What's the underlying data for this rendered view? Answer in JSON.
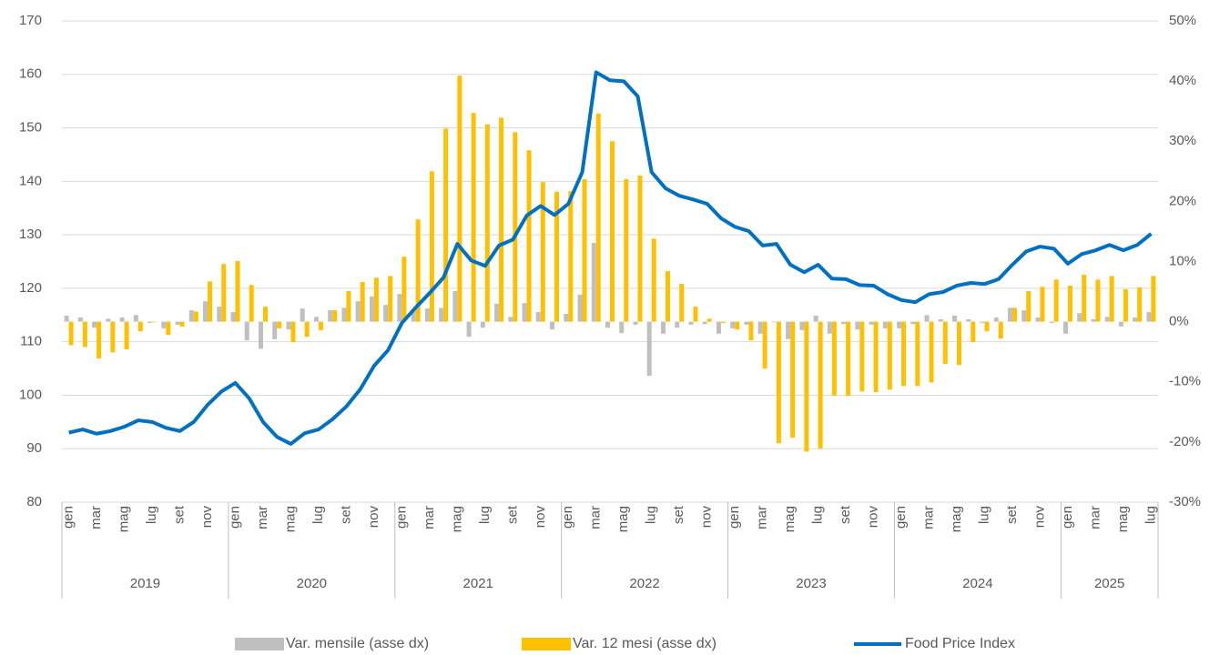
{
  "chart_data": {
    "type": "combo",
    "categories": [
      "gen",
      null,
      "mar",
      null,
      "mag",
      null,
      "lug",
      null,
      "set",
      null,
      "nov",
      null,
      "gen",
      null,
      "mar",
      null,
      "mag",
      null,
      "lug",
      null,
      "set",
      null,
      "nov",
      null,
      "gen",
      null,
      "mar",
      null,
      "mag",
      null,
      "lug",
      null,
      "set",
      null,
      "nov",
      null,
      "gen",
      null,
      "mar",
      null,
      "mag",
      null,
      "lug",
      null,
      "set",
      null,
      "nov",
      null,
      "gen",
      null,
      "mar",
      null,
      "mag",
      null,
      "lug",
      null,
      "set",
      null,
      "nov",
      null,
      "gen",
      null,
      "mar",
      null,
      "mag",
      null,
      "lug",
      null,
      "set",
      null,
      "nov",
      null,
      "gen",
      null,
      "mar",
      null,
      "mag",
      null,
      "lug"
    ],
    "year_groups": [
      "2019",
      "2020",
      "2021",
      "2022",
      "2023",
      "2024",
      "2025"
    ],
    "series": [
      {
        "name": "Var. mensile (asse dx)",
        "type": "bar",
        "axis": "y2",
        "color": "#bfbfbf",
        "values": [
          1.0,
          0.7,
          -1.0,
          0.5,
          0.7,
          1.1,
          -0.2,
          -1.1,
          -0.5,
          1.9,
          3.4,
          2.5,
          1.6,
          -3.1,
          -4.5,
          -2.9,
          -1.3,
          2.2,
          0.8,
          1.9,
          2.3,
          3.4,
          4.2,
          2.8,
          4.6,
          2.0,
          2.2,
          2.3,
          5.1,
          -2.5,
          -1.0,
          3.0,
          0.8,
          3.1,
          1.6,
          -1.3,
          1.3,
          4.5,
          13.1,
          -1.0,
          -1.9,
          -0.5,
          -9.0,
          -2.0,
          -1.0,
          -0.5,
          -0.4,
          -2.0,
          -1.1,
          -0.5,
          -2.0,
          0.1,
          -2.9,
          -1.4,
          1.0,
          -2.0,
          -0.4,
          -1.3,
          -0.5,
          -1.1,
          -1.1,
          -0.4,
          1.1,
          0.4,
          1.0,
          0.4,
          -0.2,
          0.7,
          2.3,
          1.9,
          0.7,
          -0.2,
          -2.0,
          1.4,
          0.4,
          0.8,
          -0.8,
          0.7,
          1.6
        ]
      },
      {
        "name": "Var. 12 mesi (asse dx)",
        "type": "bar",
        "axis": "y2",
        "color": "#ffc000",
        "values": [
          -3.9,
          -4.2,
          -6.1,
          -5.1,
          -4.6,
          -1.6,
          -0.1,
          -2.2,
          -0.8,
          1.7,
          6.7,
          9.6,
          10.1,
          6.1,
          2.5,
          -1.1,
          -3.4,
          -2.5,
          -1.4,
          1.9,
          5.1,
          6.6,
          7.3,
          7.6,
          10.8,
          17.0,
          25.0,
          32.1,
          40.9,
          34.7,
          32.8,
          33.9,
          31.5,
          28.5,
          23.2,
          21.6,
          21.7,
          23.7,
          34.6,
          30.0,
          23.7,
          24.3,
          13.8,
          8.4,
          6.3,
          2.5,
          0.5,
          -0.2,
          -1.3,
          -3.1,
          -7.8,
          -20.2,
          -19.3,
          -21.6,
          -21.1,
          -12.3,
          -12.3,
          -11.6,
          -11.7,
          -11.3,
          -10.7,
          -10.7,
          -10.1,
          -7.0,
          -7.2,
          -3.4,
          -1.6,
          -2.8,
          2.3,
          5.1,
          5.8,
          7.0,
          6.0,
          7.8,
          7.0,
          7.6,
          5.4,
          5.7,
          7.6
        ]
      },
      {
        "name": "Food Price Index",
        "type": "line",
        "axis": "y",
        "color": "#0070c0",
        "values": [
          93.0,
          93.6,
          92.8,
          93.3,
          94.1,
          95.3,
          95.0,
          93.9,
          93.3,
          95.0,
          98.2,
          100.7,
          102.3,
          99.4,
          95.0,
          92.2,
          90.9,
          92.9,
          93.6,
          95.5,
          97.9,
          101.1,
          105.5,
          108.4,
          113.5,
          116.4,
          119.1,
          122.0,
          128.3,
          125.2,
          124.2,
          128.0,
          129.1,
          133.6,
          135.4,
          133.7,
          135.8,
          141.7,
          160.4,
          158.9,
          158.7,
          155.9,
          141.7,
          138.7,
          137.3,
          136.6,
          135.8,
          133.1,
          131.5,
          130.7,
          128.0,
          128.3,
          124.4,
          123.0,
          124.4,
          121.8,
          121.7,
          120.6,
          120.5,
          118.9,
          117.8,
          117.4,
          118.9,
          119.3,
          120.5,
          121.0,
          120.8,
          121.7,
          124.4,
          126.9,
          127.8,
          127.4,
          124.6,
          126.4,
          127.1,
          128.1,
          127.1,
          128.1,
          130.2
        ]
      }
    ],
    "ylim": [
      80,
      170
    ],
    "yticks": [
      80,
      90,
      100,
      110,
      120,
      130,
      140,
      150,
      160,
      170
    ],
    "y2lim": [
      -30,
      50
    ],
    "y2ticks": [
      {
        "value": -30,
        "label": "-30%"
      },
      {
        "value": -20,
        "label": "-20%"
      },
      {
        "value": -10,
        "label": "-10%"
      },
      {
        "value": 0,
        "label": "0%"
      },
      {
        "value": 10,
        "label": "10%"
      },
      {
        "value": 20,
        "label": "20%"
      },
      {
        "value": 30,
        "label": "30%"
      },
      {
        "value": 40,
        "label": "40%"
      },
      {
        "value": 50,
        "label": "50%"
      }
    ],
    "grid": true,
    "legend": "bottom"
  }
}
